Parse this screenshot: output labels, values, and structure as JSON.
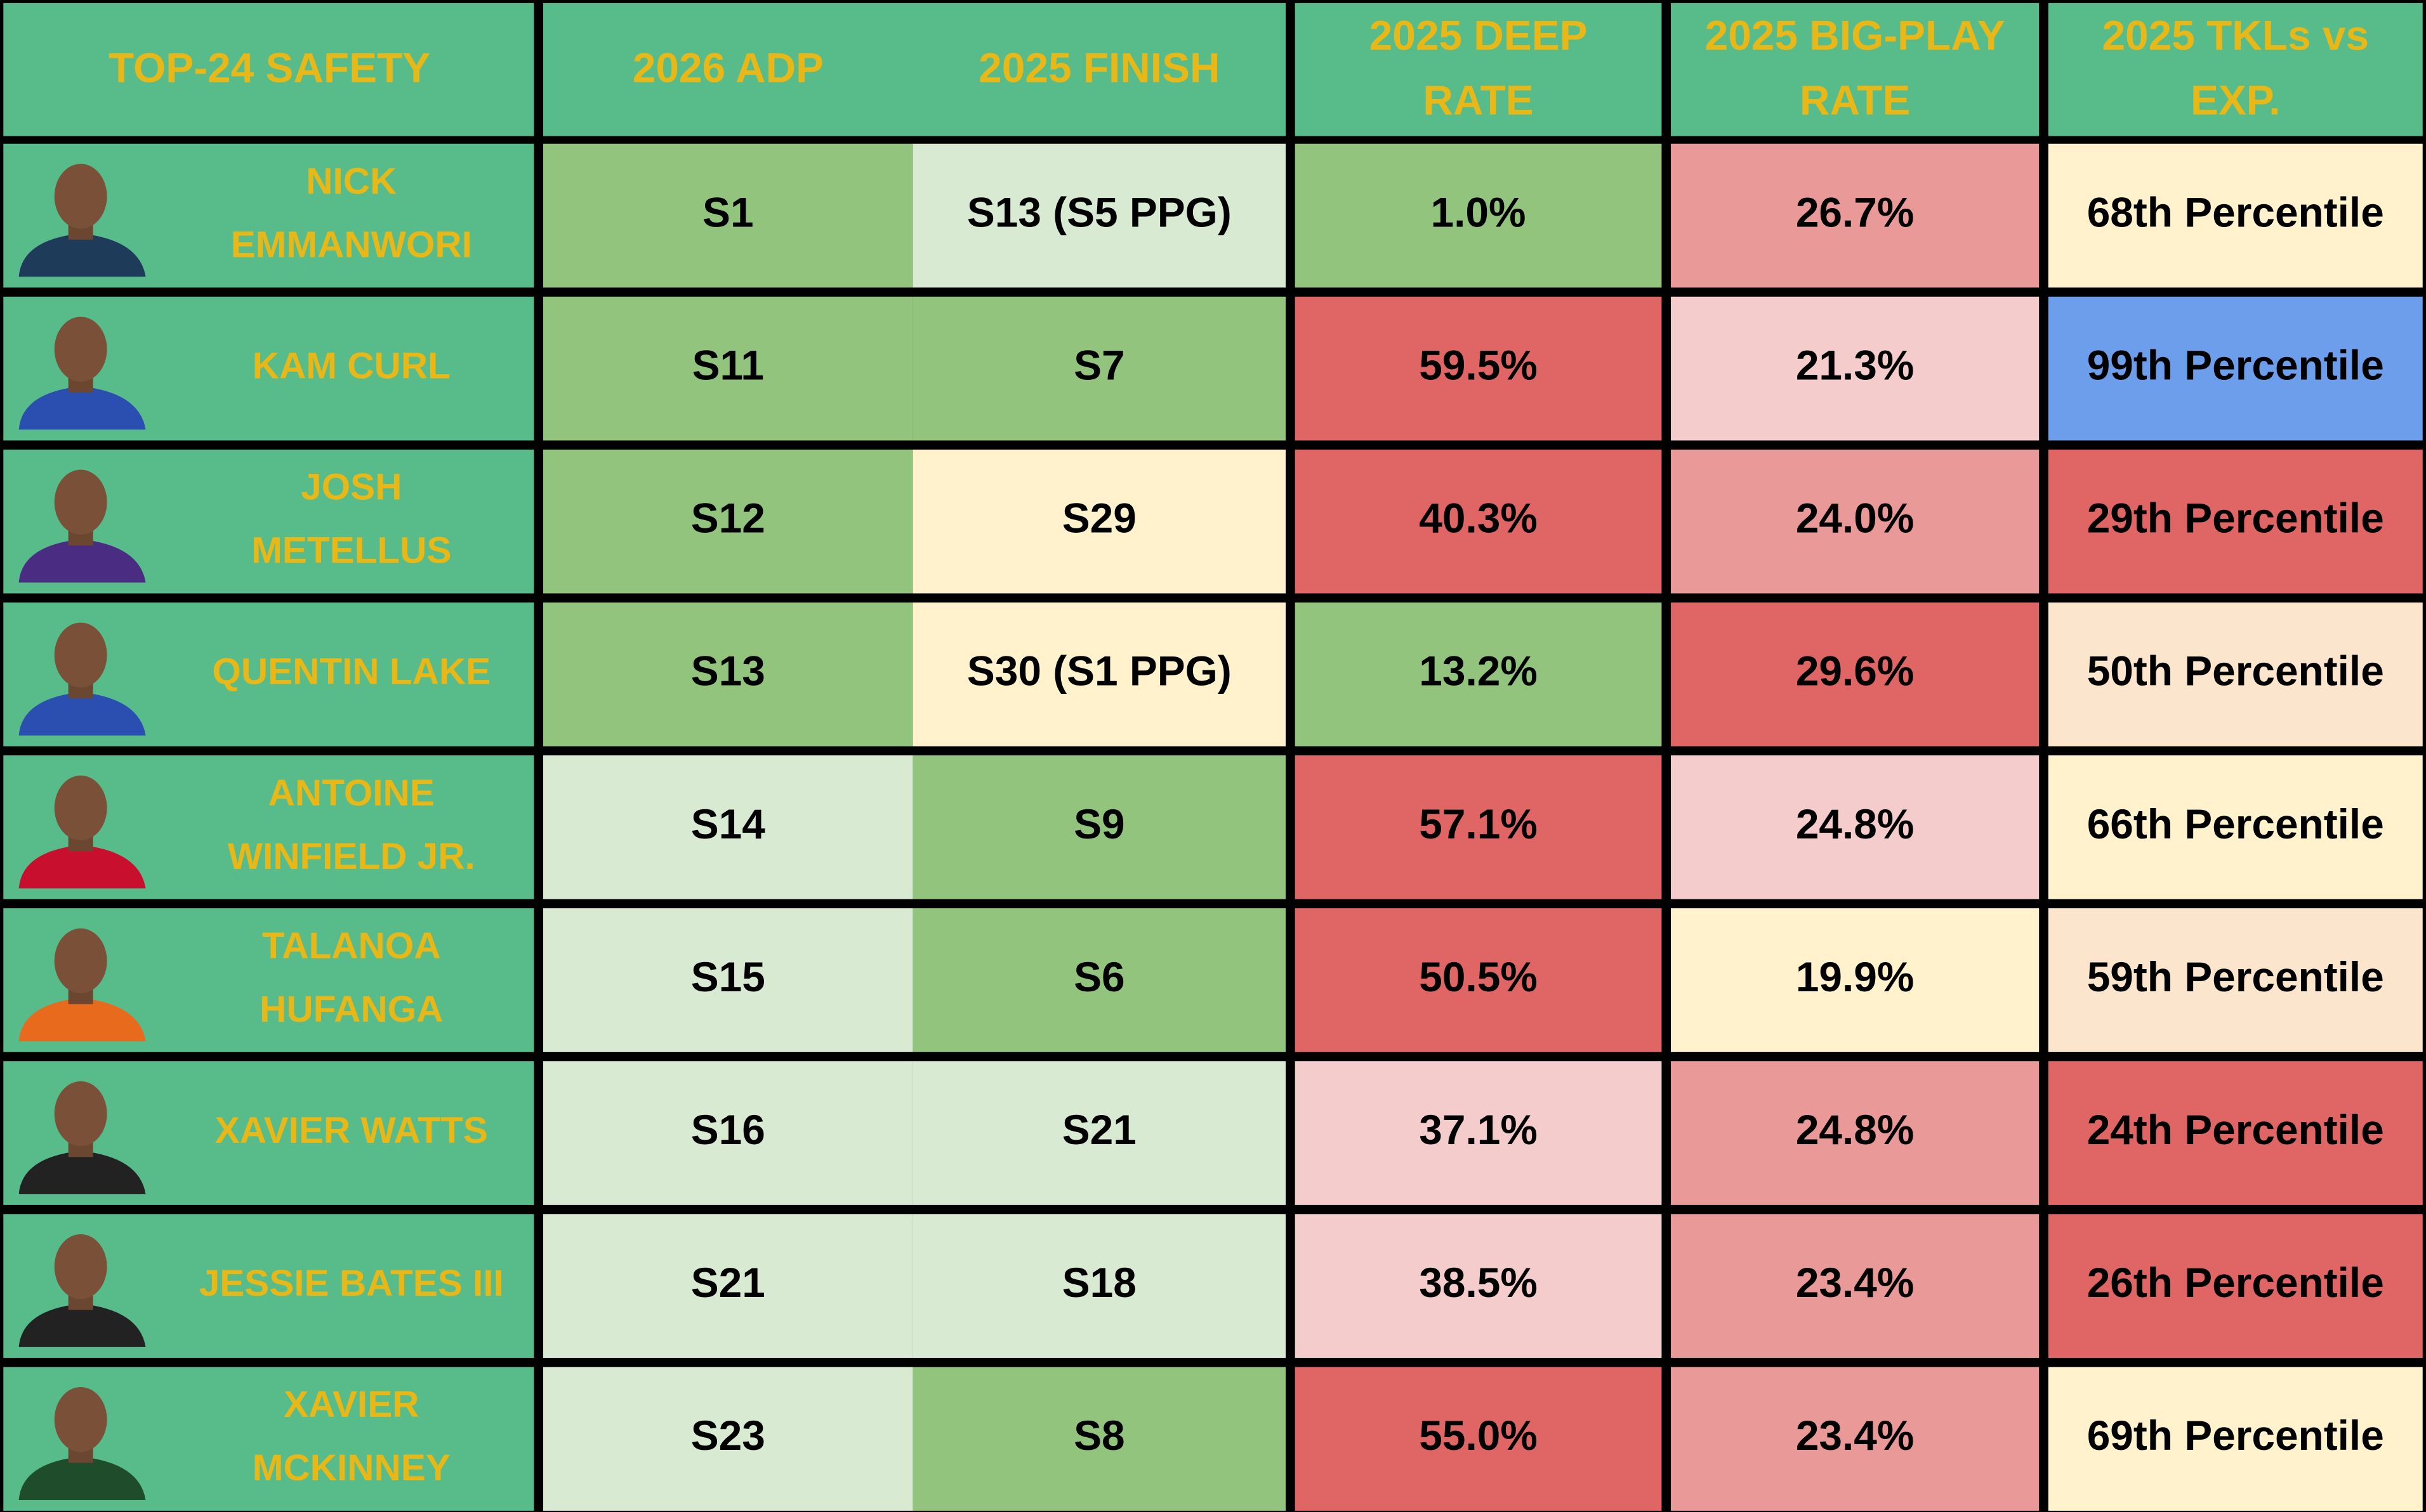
{
  "table": {
    "headers": [
      [
        "TOP-24 SAFETY"
      ],
      [
        "2026 ADP"
      ],
      [
        "2025 FINISH"
      ],
      [
        "2025 DEEP",
        "RATE"
      ],
      [
        "2025 BIG-PLAY",
        "RATE"
      ],
      [
        "2025 TKLs vs",
        "EXP."
      ]
    ],
    "rows": [
      [
        [
          "NICK",
          "EMMANWORI"
        ],
        "S1",
        "S13 (S5 PPG)",
        "1.0%",
        "26.7%",
        "68th Percentile"
      ],
      [
        [
          "KAM CURL"
        ],
        "S11",
        "S7",
        "59.5%",
        "21.3%",
        "99th Percentile"
      ],
      [
        [
          "JOSH",
          "METELLUS"
        ],
        "S12",
        "S29",
        "40.3%",
        "24.0%",
        "29th Percentile"
      ],
      [
        [
          "QUENTIN LAKE"
        ],
        "S13",
        "S30 (S1 PPG)",
        "13.2%",
        "29.6%",
        "50th Percentile"
      ],
      [
        [
          "ANTOINE",
          "WINFIELD JR."
        ],
        "S14",
        "S9",
        "57.1%",
        "24.8%",
        "66th Percentile"
      ],
      [
        [
          "TALANOA",
          "HUFANGA"
        ],
        "S15",
        "S6",
        "50.5%",
        "19.9%",
        "59th Percentile"
      ],
      [
        [
          "XAVIER WATTS"
        ],
        "S16",
        "S21",
        "37.1%",
        "24.8%",
        "24th Percentile"
      ],
      [
        [
          "JESSIE BATES III"
        ],
        "S21",
        "S18",
        "38.5%",
        "23.4%",
        "26th Percentile"
      ],
      [
        [
          "XAVIER",
          "MCKINNEY"
        ],
        "S23",
        "S8",
        "55.0%",
        "23.4%",
        "69th Percentile"
      ]
    ]
  }
}
